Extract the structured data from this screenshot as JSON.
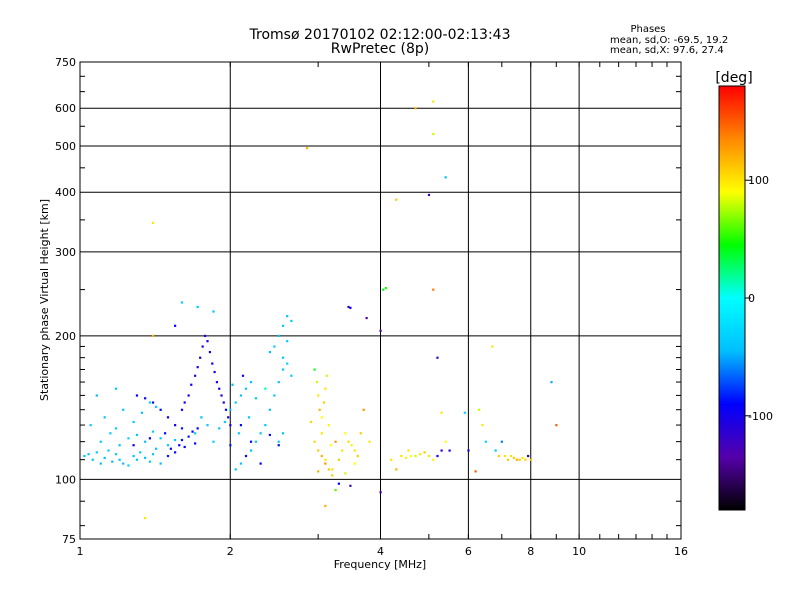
{
  "chart_data": {
    "type": "scatter",
    "title": "Tromsø 20170102 02:12:00-02:13:43",
    "subtitle": "RwPretec (8p)",
    "xlabel": "Frequency [MHz]",
    "ylabel": "Stationary phase Virtual Height [km]",
    "x_scale": "log",
    "y_scale": "log",
    "xlim": [
      1,
      16
    ],
    "ylim": [
      75,
      750
    ],
    "x_ticks": [
      1,
      2,
      4,
      6,
      8,
      10,
      16
    ],
    "y_ticks": [
      75,
      100,
      200,
      300,
      400,
      500,
      600,
      750
    ],
    "grid": true,
    "stats": {
      "title": "Phases",
      "line1": "mean, sd,O: -69.5, 19.2",
      "line2": "mean, sd,X:  97.6, 27.4"
    },
    "colorbar": {
      "label": "[deg]",
      "range": [
        -180,
        180
      ],
      "ticks": [
        100,
        0,
        -100
      ],
      "colormap": [
        "#000000",
        "#5500aa",
        "#0000ff",
        "#00bfff",
        "#00ffff",
        "#00ff00",
        "#ffff00",
        "#ff8800",
        "#ff0000"
      ]
    },
    "points": [
      [
        1.02,
        112,
        -40
      ],
      [
        1.04,
        113,
        -38
      ],
      [
        1.06,
        110,
        -42
      ],
      [
        1.08,
        114,
        -35
      ],
      [
        1.1,
        108,
        -45
      ],
      [
        1.12,
        111,
        -40
      ],
      [
        1.14,
        115,
        -38
      ],
      [
        1.16,
        109,
        -44
      ],
      [
        1.18,
        113,
        -36
      ],
      [
        1.2,
        110,
        -41
      ],
      [
        1.22,
        108,
        -45
      ],
      [
        1.25,
        107,
        -30
      ],
      [
        1.28,
        112,
        -40
      ],
      [
        1.3,
        110,
        -35
      ],
      [
        1.32,
        114,
        -38
      ],
      [
        1.35,
        111,
        -42
      ],
      [
        1.38,
        109,
        -36
      ],
      [
        1.4,
        113,
        -40
      ],
      [
        1.42,
        116,
        -38
      ],
      [
        1.45,
        108,
        -44
      ],
      [
        1.1,
        120,
        -38
      ],
      [
        1.15,
        125,
        -35
      ],
      [
        1.2,
        118,
        -40
      ],
      [
        1.25,
        122,
        -30
      ],
      [
        1.3,
        124,
        -38
      ],
      [
        1.35,
        120,
        -42
      ],
      [
        1.4,
        126,
        -35
      ],
      [
        1.45,
        122,
        -38
      ],
      [
        1.5,
        118,
        -40
      ],
      [
        1.55,
        121,
        -36
      ],
      [
        1.05,
        130,
        -35
      ],
      [
        1.12,
        135,
        -40
      ],
      [
        1.18,
        128,
        -30
      ],
      [
        1.22,
        140,
        -38
      ],
      [
        1.28,
        132,
        -35
      ],
      [
        1.33,
        138,
        -40
      ],
      [
        1.38,
        145,
        -30
      ],
      [
        1.42,
        142,
        -36
      ],
      [
        1.18,
        155,
        -35
      ],
      [
        1.08,
        150,
        -45
      ],
      [
        1.3,
        150,
        -90
      ],
      [
        1.35,
        148,
        -95
      ],
      [
        1.4,
        145,
        -100
      ],
      [
        1.45,
        140,
        -88
      ],
      [
        1.5,
        135,
        -92
      ],
      [
        1.55,
        130,
        -95
      ],
      [
        1.6,
        128,
        -85
      ],
      [
        1.28,
        118,
        -90
      ],
      [
        1.38,
        122,
        -95
      ],
      [
        1.48,
        125,
        -88
      ],
      [
        1.5,
        112,
        -85
      ],
      [
        1.52,
        116,
        -90
      ],
      [
        1.55,
        114,
        -88
      ],
      [
        1.58,
        118,
        -92
      ],
      [
        1.6,
        121,
        -86
      ],
      [
        1.62,
        117,
        -90
      ],
      [
        1.65,
        123,
        -85
      ],
      [
        1.68,
        126,
        -95
      ],
      [
        1.7,
        119,
        -88
      ],
      [
        1.72,
        128,
        -92
      ],
      [
        1.6,
        140,
        -100
      ],
      [
        1.62,
        145,
        -95
      ],
      [
        1.65,
        150,
        -105
      ],
      [
        1.67,
        158,
        -98
      ],
      [
        1.7,
        165,
        -110
      ],
      [
        1.72,
        172,
        -100
      ],
      [
        1.74,
        180,
        -95
      ],
      [
        1.76,
        190,
        -100
      ],
      [
        1.78,
        200,
        -105
      ],
      [
        1.8,
        195,
        -98
      ],
      [
        1.82,
        185,
        -100
      ],
      [
        1.84,
        175,
        -95
      ],
      [
        1.86,
        168,
        -105
      ],
      [
        1.88,
        160,
        -100
      ],
      [
        1.9,
        155,
        -95
      ],
      [
        1.92,
        150,
        -100
      ],
      [
        1.94,
        145,
        -95
      ],
      [
        1.96,
        140,
        -98
      ],
      [
        1.98,
        135,
        -100
      ],
      [
        2.0,
        130,
        -95
      ],
      [
        1.85,
        225,
        -40
      ],
      [
        1.72,
        230,
        -40
      ],
      [
        1.55,
        210,
        -90
      ],
      [
        1.6,
        235,
        -35
      ],
      [
        1.7,
        125,
        -35
      ],
      [
        1.8,
        130,
        -38
      ],
      [
        1.9,
        128,
        -40
      ],
      [
        1.95,
        132,
        -38
      ],
      [
        1.75,
        135,
        -42
      ],
      [
        1.85,
        120,
        -35
      ],
      [
        2.0,
        140,
        -40
      ],
      [
        2.05,
        145,
        -38
      ],
      [
        2.1,
        150,
        -42
      ],
      [
        2.15,
        155,
        -35
      ],
      [
        2.2,
        160,
        -40
      ],
      [
        2.25,
        148,
        -38
      ],
      [
        2.02,
        158,
        -45
      ],
      [
        2.12,
        165,
        -100
      ],
      [
        2.08,
        125,
        -38
      ],
      [
        2.18,
        135,
        -40
      ],
      [
        2.05,
        105,
        -40
      ],
      [
        2.1,
        108,
        -38
      ],
      [
        2.2,
        115,
        -42
      ],
      [
        2.25,
        120,
        -35
      ],
      [
        2.3,
        125,
        -40
      ],
      [
        2.35,
        130,
        -38
      ],
      [
        2.4,
        140,
        -42
      ],
      [
        2.45,
        150,
        -35
      ],
      [
        2.5,
        160,
        -40
      ],
      [
        2.55,
        170,
        -38
      ],
      [
        2.45,
        190,
        -35
      ],
      [
        2.5,
        200,
        -40
      ],
      [
        2.55,
        210,
        -38
      ],
      [
        2.6,
        220,
        -42
      ],
      [
        2.65,
        215,
        -35
      ],
      [
        2.55,
        180,
        -40
      ],
      [
        2.4,
        185,
        -45
      ],
      [
        2.6,
        195,
        -38
      ],
      [
        2.5,
        120,
        -35
      ],
      [
        2.55,
        125,
        -40
      ],
      [
        2.3,
        108,
        -90
      ],
      [
        2.2,
        120,
        -95
      ],
      [
        2.15,
        112,
        -88
      ],
      [
        2.1,
        130,
        -92
      ],
      [
        2.0,
        118,
        -85
      ],
      [
        2.35,
        155,
        10
      ],
      [
        2.6,
        175,
        -30
      ],
      [
        2.5,
        118,
        -90
      ],
      [
        2.4,
        124,
        -88
      ],
      [
        2.65,
        165,
        -35
      ],
      [
        2.95,
        170,
        40
      ],
      [
        2.98,
        160,
        80
      ],
      [
        3.0,
        150,
        100
      ],
      [
        3.02,
        140,
        120
      ],
      [
        3.05,
        135,
        90
      ],
      [
        3.08,
        145,
        110
      ],
      [
        3.1,
        155,
        100
      ],
      [
        3.12,
        165,
        80
      ],
      [
        3.15,
        130,
        95
      ],
      [
        3.05,
        125,
        100
      ],
      [
        2.95,
        120,
        105
      ],
      [
        3.0,
        115,
        110
      ],
      [
        3.05,
        112,
        120
      ],
      [
        3.1,
        108,
        130
      ],
      [
        3.15,
        105,
        110
      ],
      [
        3.0,
        104,
        120
      ],
      [
        3.1,
        110,
        100
      ],
      [
        3.18,
        118,
        90
      ],
      [
        3.2,
        102,
        110
      ],
      [
        2.9,
        132,
        105
      ],
      [
        3.25,
        95,
        60
      ],
      [
        3.1,
        88,
        120
      ],
      [
        3.25,
        120,
        130
      ],
      [
        3.3,
        110,
        110
      ],
      [
        3.35,
        115,
        100
      ],
      [
        3.4,
        125,
        90
      ],
      [
        3.45,
        120,
        105
      ],
      [
        3.5,
        118,
        95
      ],
      [
        3.55,
        115,
        100
      ],
      [
        3.6,
        112,
        110
      ],
      [
        3.3,
        98,
        -90
      ],
      [
        3.2,
        105,
        100
      ],
      [
        3.4,
        103,
        80
      ],
      [
        3.48,
        97,
        -120
      ],
      [
        3.55,
        108,
        90
      ],
      [
        3.65,
        125,
        110
      ],
      [
        3.7,
        140,
        130
      ],
      [
        3.8,
        120,
        100
      ],
      [
        3.45,
        230,
        -110
      ],
      [
        3.48,
        229,
        -100
      ],
      [
        3.75,
        218,
        -130
      ],
      [
        4.0,
        205,
        -130
      ],
      [
        4.05,
        250,
        40
      ],
      [
        4.1,
        252,
        50
      ],
      [
        4.0,
        94,
        -125
      ],
      [
        4.2,
        110,
        100
      ],
      [
        4.3,
        105,
        120
      ],
      [
        4.4,
        112,
        100
      ],
      [
        4.5,
        111,
        95
      ],
      [
        4.6,
        112,
        90
      ],
      [
        4.7,
        112,
        80
      ],
      [
        4.8,
        113,
        100
      ],
      [
        4.9,
        114,
        110
      ],
      [
        5.0,
        112,
        100
      ],
      [
        5.1,
        110,
        95
      ],
      [
        4.55,
        115,
        100
      ],
      [
        5.2,
        112,
        -100
      ],
      [
        5.3,
        115,
        -120
      ],
      [
        5.4,
        120,
        90
      ],
      [
        5.5,
        115,
        -110
      ],
      [
        5.1,
        250,
        140
      ],
      [
        5.2,
        180,
        -120
      ],
      [
        5.0,
        395,
        -120
      ],
      [
        5.1,
        530,
        80
      ],
      [
        5.1,
        620,
        100
      ],
      [
        4.7,
        600,
        120
      ],
      [
        5.4,
        430,
        -40
      ],
      [
        4.3,
        386,
        110
      ],
      [
        2.85,
        495,
        120
      ],
      [
        1.4,
        345,
        100
      ],
      [
        1.4,
        200,
        120
      ],
      [
        1.35,
        83,
        100
      ],
      [
        6.0,
        115,
        -100
      ],
      [
        6.2,
        104,
        150
      ],
      [
        6.5,
        120,
        -30
      ],
      [
        6.7,
        190,
        100
      ],
      [
        6.8,
        115,
        -40
      ],
      [
        7.0,
        120,
        -60
      ],
      [
        7.2,
        110,
        110
      ],
      [
        7.3,
        112,
        100
      ],
      [
        7.4,
        111,
        110
      ],
      [
        7.5,
        110,
        120
      ],
      [
        7.6,
        110,
        110
      ],
      [
        7.7,
        111,
        100
      ],
      [
        7.8,
        110,
        105
      ],
      [
        7.9,
        112,
        -150
      ],
      [
        8.0,
        110,
        115
      ],
      [
        7.1,
        112,
        100
      ],
      [
        6.9,
        112,
        110
      ],
      [
        8.8,
        160,
        -50
      ],
      [
        9.0,
        130,
        150
      ],
      [
        5.3,
        138,
        100
      ],
      [
        5.9,
        138,
        -30
      ],
      [
        6.3,
        140,
        80
      ],
      [
        6.4,
        130,
        100
      ]
    ]
  }
}
